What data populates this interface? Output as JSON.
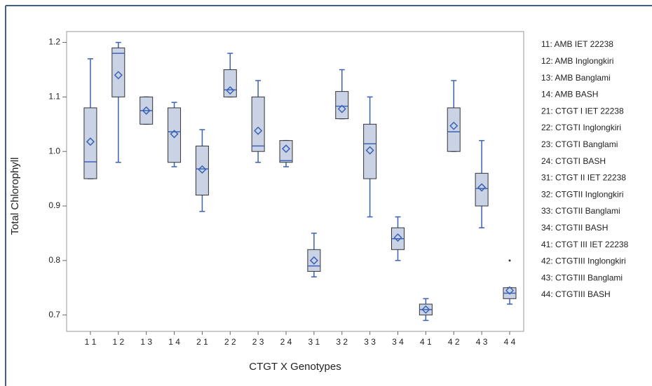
{
  "chart_data": {
    "type": "box",
    "x_label": "CTGT X Genotypes",
    "y_label": "Total Chlorophyll",
    "categories": [
      "1 1",
      "1 2",
      "1 3",
      "1 4",
      "2 1",
      "2 2",
      "2 3",
      "2 4",
      "3 1",
      "3 2",
      "3 3",
      "3 4",
      "4 1",
      "4 2",
      "4 3",
      "4 4"
    ],
    "boxes": [
      {
        "min": 0.95,
        "q1": 0.95,
        "median": 0.981,
        "q3": 1.08,
        "max": 1.17,
        "mean": 1.018
      },
      {
        "min": 0.98,
        "q1": 1.1,
        "median": 1.18,
        "q3": 1.19,
        "max": 1.2,
        "mean": 1.14
      },
      {
        "min": 1.05,
        "q1": 1.05,
        "median": 1.075,
        "q3": 1.1,
        "max": 1.1,
        "mean": 1.075
      },
      {
        "min": 0.972,
        "q1": 0.98,
        "median": 1.036,
        "q3": 1.08,
        "max": 1.09,
        "mean": 1.032
      },
      {
        "min": 0.89,
        "q1": 0.92,
        "median": 0.968,
        "q3": 1.01,
        "max": 1.04,
        "mean": 0.967
      },
      {
        "min": 1.1,
        "q1": 1.1,
        "median": 1.113,
        "q3": 1.15,
        "max": 1.18,
        "mean": 1.112
      },
      {
        "min": 0.98,
        "q1": 1.0,
        "median": 1.01,
        "q3": 1.1,
        "max": 1.13,
        "mean": 1.038
      },
      {
        "min": 0.972,
        "q1": 0.98,
        "median": 0.983,
        "q3": 1.02,
        "max": 1.02,
        "mean": 1.005
      },
      {
        "min": 0.77,
        "q1": 0.78,
        "median": 0.79,
        "q3": 0.82,
        "max": 0.85,
        "mean": 0.8
      },
      {
        "min": 1.06,
        "q1": 1.06,
        "median": 1.083,
        "q3": 1.11,
        "max": 1.15,
        "mean": 1.078
      },
      {
        "min": 0.88,
        "q1": 0.95,
        "median": 1.014,
        "q3": 1.05,
        "max": 1.1,
        "mean": 1.002
      },
      {
        "min": 0.8,
        "q1": 0.82,
        "median": 0.84,
        "q3": 0.86,
        "max": 0.88,
        "mean": 0.842
      },
      {
        "min": 0.69,
        "q1": 0.7,
        "median": 0.71,
        "q3": 0.72,
        "max": 0.73,
        "mean": 0.71
      },
      {
        "min": 1.0,
        "q1": 1.0,
        "median": 1.036,
        "q3": 1.08,
        "max": 1.13,
        "mean": 1.047
      },
      {
        "min": 0.86,
        "q1": 0.9,
        "median": 0.932,
        "q3": 0.96,
        "max": 1.02,
        "mean": 0.934
      },
      {
        "min": 0.72,
        "q1": 0.73,
        "median": 0.74,
        "q3": 0.75,
        "max": 0.75,
        "mean": 0.745,
        "outliers": [
          0.8
        ]
      }
    ],
    "box_color": "#c9d3e5",
    "line_color": "#3b62b5",
    "ylim": [
      0.67,
      1.22
    ],
    "yticks": [
      0.7,
      0.8,
      0.9,
      {
        "value": 1,
        "label": "1.0"
      },
      1.1,
      1.2
    ],
    "legend": [
      "11: AMB IET 22238",
      "12: AMB Inglongkiri",
      "13: AMB  Banglami",
      "14: AMB BASH",
      "21: CTGT I IET 22238",
      "22: CTGTI Inglongkiri",
      "23: CTGTI  Banglami",
      "24: CTGTI BASH",
      "31: CTGT II IET 22238",
      "32: CTGTII Inglongkiri",
      "33: CTGTII  Banglami",
      "34: CTGTII BASH",
      "41: CTGT III IET 22238",
      "42: CTGTIII Inglongkiri",
      "43: CTGTIII  Banglami",
      "44: CTGTIII BASH"
    ]
  }
}
